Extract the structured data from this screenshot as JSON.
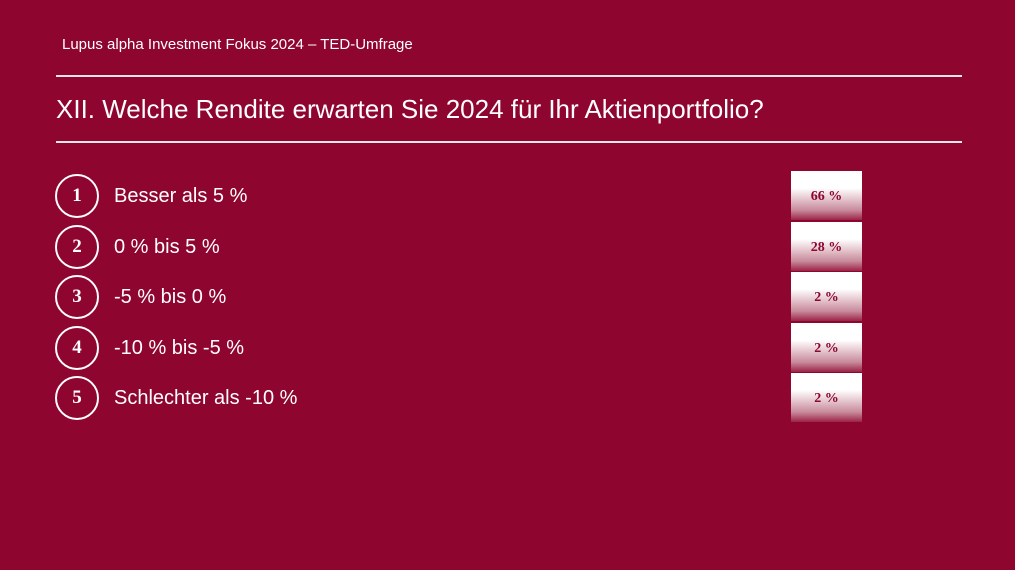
{
  "header": {
    "subtitle": "Lupus alpha Investment Fokus 2024 – TED-Umfrage",
    "title": "XII. Welche Rendite erwarten Sie 2024 für Ihr Aktienportfolio?"
  },
  "options": [
    {
      "number": "1",
      "label": "Besser als 5 %",
      "result": "66 %"
    },
    {
      "number": "2",
      "label": "0 % bis 5 %",
      "result": "28 %"
    },
    {
      "number": "3",
      "label": "-5 % bis 0 %",
      "result": "2 %"
    },
    {
      "number": "4",
      "label": "-10 % bis -5 %",
      "result": "2 %"
    },
    {
      "number": "5",
      "label": "Schlechter als -10 %",
      "result": "2 %"
    }
  ]
}
